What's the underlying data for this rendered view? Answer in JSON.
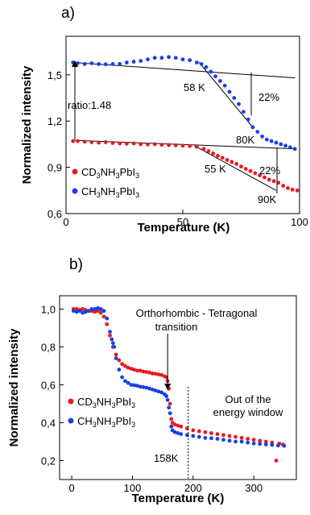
{
  "chart_data": [
    {
      "panel": "a)",
      "type": "scatter",
      "xlabel": "Temperature (K)",
      "ylabel": "Normalized intensity",
      "xlim": [
        0,
        100
      ],
      "ylim": [
        0.6,
        1.75
      ],
      "xticks": [
        0,
        50,
        100
      ],
      "yticks": [
        0.6,
        0.9,
        1.2,
        1.5
      ],
      "xtick_labels": [
        "0",
        "50",
        "100"
      ],
      "ytick_labels": [
        "0,6",
        "0,9",
        "1,2",
        "1,5"
      ],
      "grid": false,
      "legend_position": "bottom-left",
      "series": [
        {
          "name": "CD3NH3PbI3",
          "name_parts": [
            "CD",
            "3",
            "NH",
            "3",
            "PbI",
            "3"
          ],
          "color": "#e8191f",
          "x": [
            3,
            5,
            8,
            11,
            14,
            17,
            20,
            23,
            26,
            29,
            32,
            35,
            38,
            41,
            44,
            47,
            50,
            53,
            56,
            59,
            61,
            63,
            65,
            67,
            69,
            71,
            73,
            75,
            77,
            79,
            81,
            83,
            85,
            87,
            89,
            91,
            93,
            95,
            97,
            99
          ],
          "y": [
            1.07,
            1.07,
            1.066,
            1.063,
            1.06,
            1.063,
            1.058,
            1.055,
            1.053,
            1.055,
            1.05,
            1.048,
            1.05,
            1.046,
            1.045,
            1.043,
            1.04,
            1.038,
            1.033,
            1.02,
            1.005,
            0.99,
            0.975,
            0.962,
            0.948,
            0.935,
            0.922,
            0.905,
            0.89,
            0.876,
            0.862,
            0.848,
            0.835,
            0.82,
            0.81,
            0.8,
            0.78,
            0.765,
            0.755,
            0.75
          ]
        },
        {
          "name": "CH3NH3PbI3",
          "name_parts": [
            "CH",
            "3",
            "NH",
            "3",
            "PbI",
            "3"
          ],
          "color": "#1a3fe0",
          "x": [
            3,
            5,
            8,
            11,
            14,
            17,
            20,
            23,
            26,
            29,
            32,
            35,
            38,
            41,
            44,
            47,
            50,
            53,
            56,
            58,
            60,
            62,
            64,
            66,
            68,
            70,
            72,
            74,
            76,
            78,
            80,
            82,
            84,
            86,
            88,
            90,
            92,
            94,
            96,
            98
          ],
          "y": [
            1.58,
            1.575,
            1.57,
            1.575,
            1.57,
            1.568,
            1.57,
            1.57,
            1.58,
            1.585,
            1.59,
            1.6,
            1.61,
            1.61,
            1.615,
            1.61,
            1.6,
            1.595,
            1.58,
            1.57,
            1.55,
            1.52,
            1.49,
            1.46,
            1.43,
            1.39,
            1.35,
            1.31,
            1.26,
            1.21,
            1.16,
            1.13,
            1.1,
            1.08,
            1.07,
            1.06,
            1.05,
            1.04,
            1.03,
            1.02
          ]
        }
      ],
      "reference_lines": [
        {
          "x": [
            3,
            98
          ],
          "y": [
            1.58,
            1.48
          ]
        },
        {
          "x": [
            3,
            98
          ],
          "y": [
            1.075,
            1.02
          ]
        },
        {
          "x": [
            57,
            80
          ],
          "y": [
            1.58,
            1.16
          ]
        },
        {
          "x": [
            55,
            90
          ],
          "y": [
            1.04,
            0.75
          ]
        }
      ],
      "annotations": {
        "ratio": "ratio:1.48",
        "blue_onset": "58 K",
        "blue_drop": "22%",
        "blue_end": "80K",
        "red_onset": "55 K",
        "red_drop": "22%",
        "red_end": "90K"
      }
    },
    {
      "panel": "b)",
      "type": "scatter",
      "xlabel": "Temperature (K)",
      "ylabel": "Normalized intensity",
      "xlim": [
        -20,
        370
      ],
      "ylim": [
        0.1,
        1.07
      ],
      "xticks": [
        0,
        100,
        200,
        300
      ],
      "yticks": [
        0.2,
        0.4,
        0.6,
        0.8,
        1.0
      ],
      "xtick_labels": [
        "0",
        "100",
        "200",
        "300"
      ],
      "ytick_labels": [
        "0,2",
        "0,4",
        "0,6",
        "0,8",
        "1,0"
      ],
      "grid": false,
      "legend_position": "bottom-left",
      "series": [
        {
          "name": "CD3NH3PbI3",
          "name_parts": [
            "CD",
            "3",
            "NH",
            "3",
            "PbI",
            "3"
          ],
          "color": "#e8191f",
          "x": [
            3,
            8,
            13,
            18,
            23,
            28,
            33,
            38,
            43,
            48,
            53,
            58,
            63,
            68,
            73,
            78,
            83,
            88,
            93,
            98,
            103,
            108,
            113,
            118,
            123,
            128,
            133,
            138,
            143,
            148,
            153,
            156,
            158,
            160,
            162,
            164,
            166,
            170,
            175,
            180,
            190,
            200,
            210,
            220,
            230,
            240,
            250,
            260,
            270,
            280,
            290,
            300,
            310,
            320,
            330,
            337,
            342,
            348
          ],
          "y": [
            1.0,
            1.0,
            0.995,
            1.0,
            0.995,
            0.99,
            0.99,
            0.985,
            0.99,
            0.98,
            0.96,
            0.92,
            0.86,
            0.8,
            0.76,
            0.73,
            0.71,
            0.7,
            0.69,
            0.685,
            0.68,
            0.675,
            0.675,
            0.67,
            0.668,
            0.665,
            0.66,
            0.658,
            0.655,
            0.652,
            0.645,
            0.64,
            0.62,
            0.58,
            0.5,
            0.42,
            0.4,
            0.39,
            0.385,
            0.38,
            0.37,
            0.36,
            0.355,
            0.35,
            0.345,
            0.34,
            0.335,
            0.33,
            0.325,
            0.32,
            0.315,
            0.31,
            0.305,
            0.3,
            0.295,
            0.2,
            0.29,
            0.285
          ]
        },
        {
          "name": "CH3NH3PbI3",
          "name_parts": [
            "CH",
            "3",
            "NH",
            "3",
            "PbI",
            "3"
          ],
          "color": "#1a3fe0",
          "x": [
            3,
            8,
            13,
            18,
            23,
            28,
            33,
            38,
            43,
            48,
            53,
            58,
            63,
            66,
            68,
            70,
            73,
            78,
            83,
            88,
            93,
            98,
            103,
            108,
            113,
            118,
            123,
            128,
            133,
            138,
            143,
            148,
            153,
            156,
            158,
            160,
            162,
            164,
            166,
            170,
            175,
            180,
            190,
            200,
            210,
            220,
            230,
            240,
            250,
            260,
            270,
            280,
            290,
            300,
            310,
            320,
            330,
            340,
            350
          ],
          "y": [
            0.99,
            0.985,
            0.99,
            0.98,
            0.985,
            0.99,
            1.0,
            1.0,
            1.005,
            1.0,
            0.99,
            0.95,
            0.88,
            0.84,
            0.82,
            0.8,
            0.74,
            0.68,
            0.64,
            0.62,
            0.61,
            0.6,
            0.598,
            0.595,
            0.59,
            0.588,
            0.585,
            0.58,
            0.575,
            0.57,
            0.565,
            0.56,
            0.55,
            0.54,
            0.52,
            0.48,
            0.45,
            0.38,
            0.36,
            0.35,
            0.345,
            0.34,
            0.335,
            0.33,
            0.325,
            0.32,
            0.318,
            0.315,
            0.31,
            0.305,
            0.3,
            0.3,
            0.295,
            0.29,
            0.288,
            0.285,
            0.283,
            0.28,
            0.278
          ]
        }
      ],
      "markers": [
        {
          "x": 158,
          "style": "arrow"
        },
        {
          "x": 192,
          "style": "dotted"
        }
      ],
      "annotations": {
        "transition_line1": "Orthorhombic - Tetragonal",
        "transition_line2": "transition",
        "window_line1": "Out of the",
        "window_line2": "energy window",
        "transition_temp": "158K"
      }
    }
  ]
}
